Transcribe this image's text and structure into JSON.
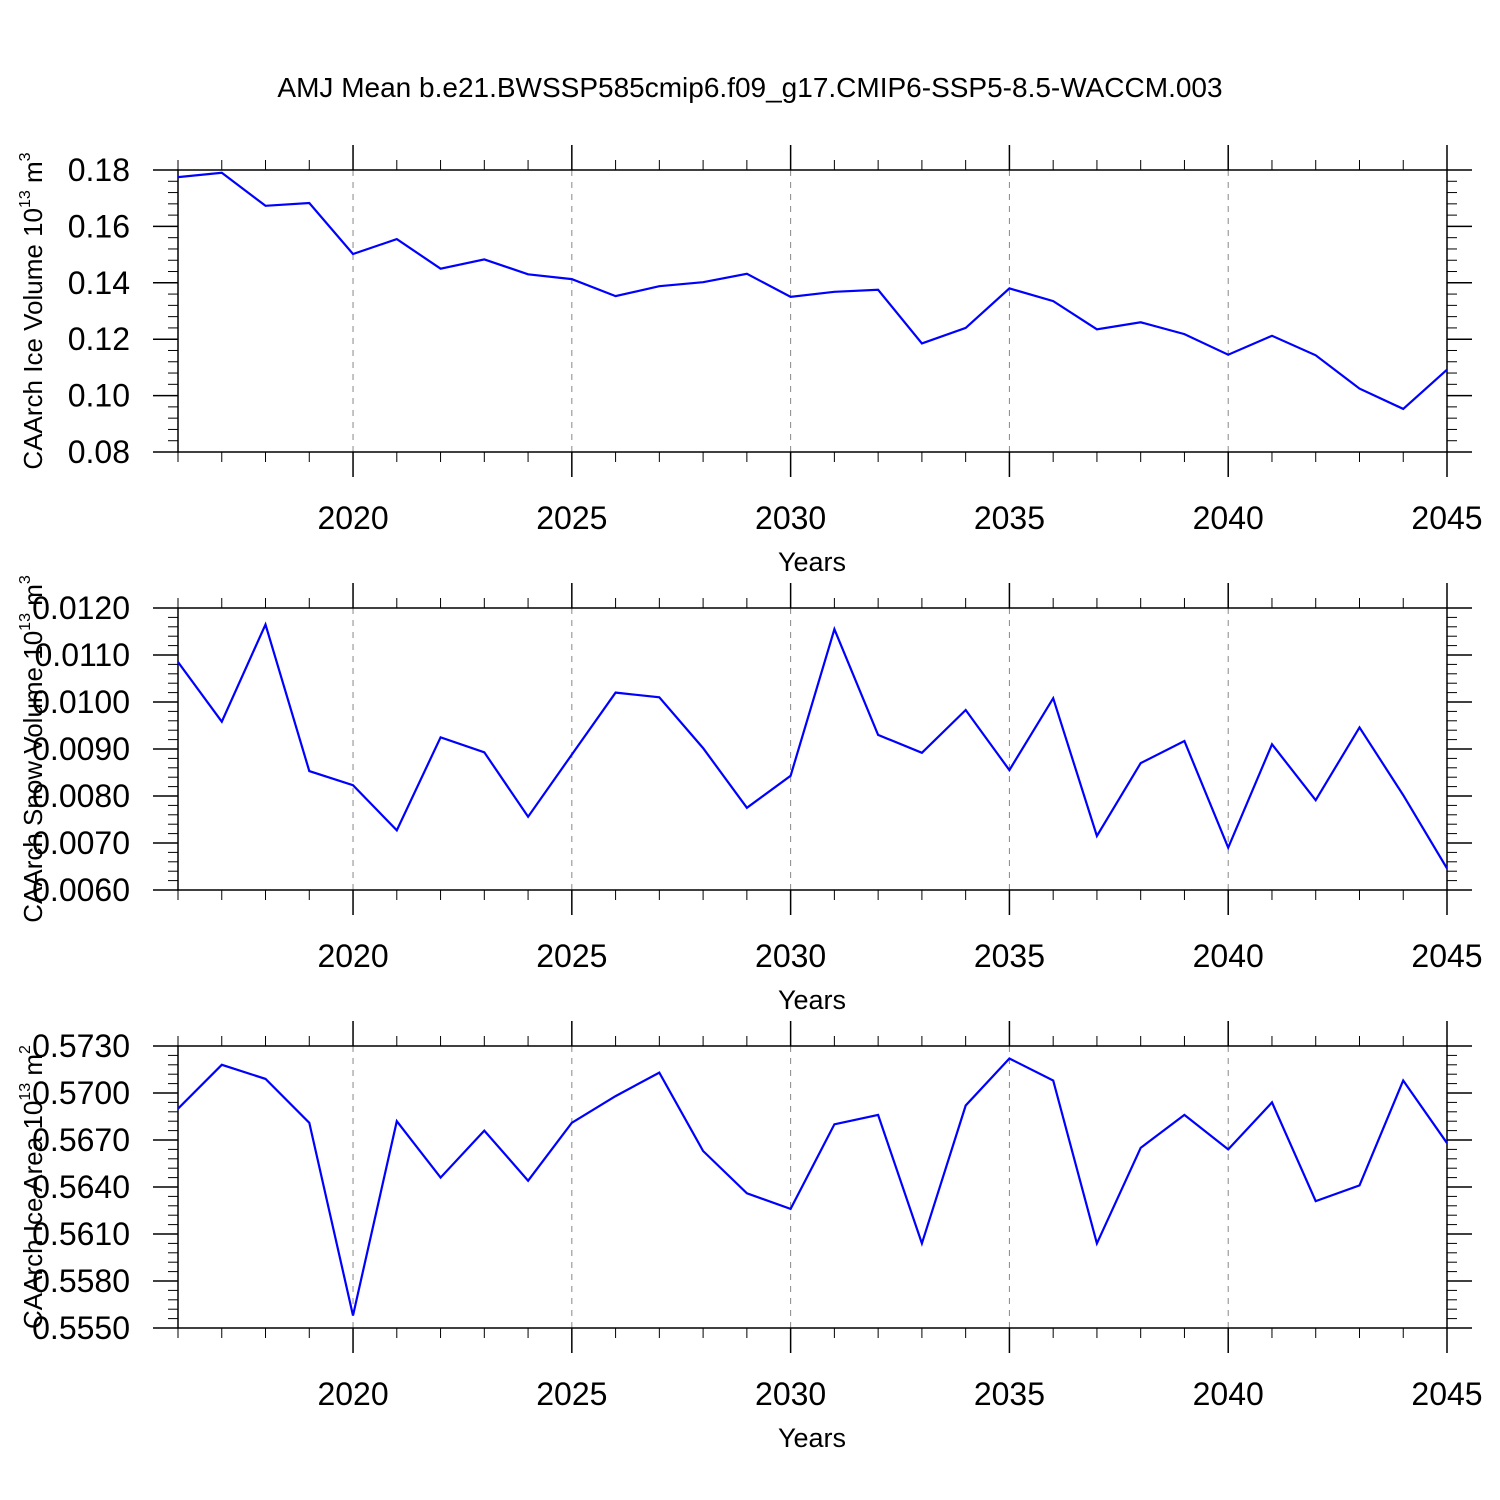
{
  "title": "AMJ Mean b.e21.BWSSP585cmip6.f09_g17.CMIP6-SSP5-8.5-WACCM.003",
  "colors": {
    "line": "#0000ff",
    "frame": "#000000",
    "grid": "#888888"
  },
  "chart_data": [
    {
      "type": "line",
      "ylabel_main": "CAArch Ice Volume 10",
      "ylabel_exp": "13",
      "ylabel_unit": " m",
      "ylabel_unit_exp": "3",
      "xlabel": "Years",
      "xlim": [
        2016,
        2045
      ],
      "ylim": [
        0.08,
        0.18
      ],
      "yticks": [
        "0.08",
        "0.10",
        "0.12",
        "0.14",
        "0.16",
        "0.18"
      ],
      "xticks": [
        "2020",
        "2025",
        "2030",
        "2035",
        "2040",
        "2045"
      ],
      "grid_x": true,
      "x": [
        2016,
        2017,
        2018,
        2019,
        2020,
        2021,
        2022,
        2023,
        2024,
        2025,
        2026,
        2027,
        2028,
        2029,
        2030,
        2031,
        2032,
        2033,
        2034,
        2035,
        2036,
        2037,
        2038,
        2039,
        2040,
        2041,
        2042,
        2043,
        2044,
        2045
      ],
      "values": [
        0.1775,
        0.179,
        0.1673,
        0.1683,
        0.1502,
        0.1555,
        0.145,
        0.1483,
        0.143,
        0.1413,
        0.1353,
        0.1388,
        0.1402,
        0.1432,
        0.135,
        0.1368,
        0.1375,
        0.1185,
        0.124,
        0.138,
        0.1335,
        0.1235,
        0.126,
        0.1218,
        0.1145,
        0.1212,
        0.1143,
        0.1025,
        0.0953,
        0.1092
      ]
    },
    {
      "type": "line",
      "ylabel_main": "CAArch Snow Volume 10",
      "ylabel_exp": "13",
      "ylabel_unit": " m",
      "ylabel_unit_exp": "3",
      "xlabel": "Years",
      "xlim": [
        2016,
        2045
      ],
      "ylim": [
        0.006,
        0.012
      ],
      "yticks": [
        "0.0060",
        "0.0070",
        "0.0080",
        "0.0090",
        "0.0100",
        "0.0110",
        "0.0120"
      ],
      "xticks": [
        "2020",
        "2025",
        "2030",
        "2035",
        "2040",
        "2045"
      ],
      "grid_x": true,
      "x": [
        2016,
        2017,
        2018,
        2019,
        2020,
        2021,
        2022,
        2023,
        2024,
        2025,
        2026,
        2027,
        2028,
        2029,
        2030,
        2031,
        2032,
        2033,
        2034,
        2035,
        2036,
        2037,
        2038,
        2039,
        2040,
        2041,
        2042,
        2043,
        2044,
        2045
      ],
      "values": [
        0.01085,
        0.00958,
        0.01165,
        0.00853,
        0.00823,
        0.00727,
        0.00925,
        0.00893,
        0.00756,
        0.00888,
        0.0102,
        0.0101,
        0.00902,
        0.00775,
        0.00843,
        0.01155,
        0.0093,
        0.00892,
        0.00983,
        0.00855,
        0.01008,
        0.00715,
        0.0087,
        0.00917,
        0.0069,
        0.0091,
        0.00791,
        0.00946,
        0.00802,
        0.00646
      ]
    },
    {
      "type": "line",
      "ylabel_main": "CAArch Ice Area 10",
      "ylabel_exp": "13",
      "ylabel_unit": " m",
      "ylabel_unit_exp": "2",
      "xlabel": "Years",
      "xlim": [
        2016,
        2045
      ],
      "ylim": [
        0.555,
        0.573
      ],
      "yticks": [
        "0.5550",
        "0.5580",
        "0.5610",
        "0.5640",
        "0.5670",
        "0.5700",
        "0.5730"
      ],
      "xticks": [
        "2020",
        "2025",
        "2030",
        "2035",
        "2040",
        "2045"
      ],
      "grid_x": true,
      "x": [
        2016,
        2017,
        2018,
        2019,
        2020,
        2021,
        2022,
        2023,
        2024,
        2025,
        2026,
        2027,
        2028,
        2029,
        2030,
        2031,
        2032,
        2033,
        2034,
        2035,
        2036,
        2037,
        2038,
        2039,
        2040,
        2041,
        2042,
        2043,
        2044,
        2045
      ],
      "values": [
        0.569,
        0.5718,
        0.5709,
        0.5681,
        0.5558,
        0.5682,
        0.5646,
        0.5676,
        0.5644,
        0.5681,
        0.5698,
        0.5713,
        0.5663,
        0.5636,
        0.5626,
        0.568,
        0.5686,
        0.5604,
        0.5692,
        0.5722,
        0.5708,
        0.5604,
        0.5665,
        0.5686,
        0.5664,
        0.5694,
        0.5631,
        0.5641,
        0.5708,
        0.5668
      ]
    }
  ]
}
